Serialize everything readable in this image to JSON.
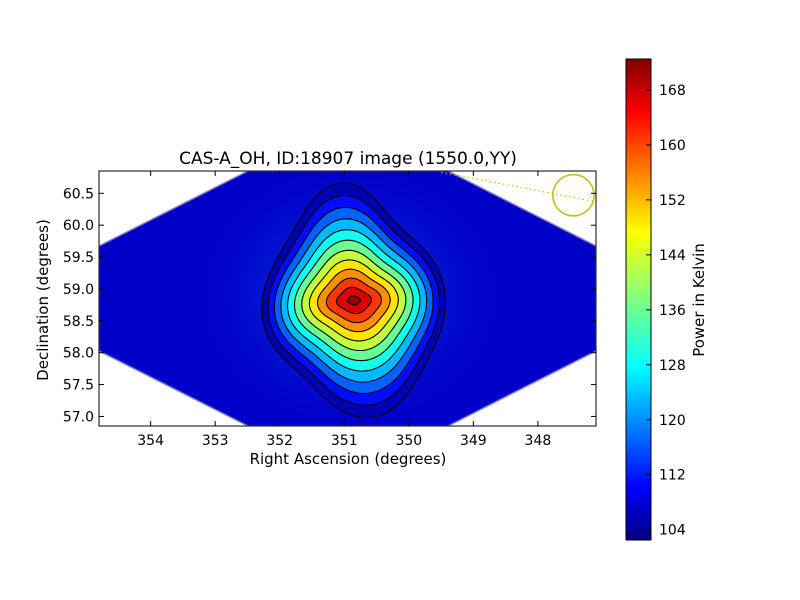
{
  "chart_data": {
    "type": "heatmap",
    "title": "CAS-A_OH, ID:18907 image (1550.0,YY)",
    "xlabel": "Right Ascension (degrees)",
    "ylabel": "Declination (degrees)",
    "x_ticks": [
      "354",
      "353",
      "352",
      "351",
      "350",
      "349",
      "348"
    ],
    "y_ticks": [
      "57.0",
      "57.5",
      "58.0",
      "58.5",
      "59.0",
      "59.5",
      "60.0",
      "60.5"
    ],
    "xlim": [
      354.8,
      347.1
    ],
    "ylim": [
      56.85,
      60.85
    ],
    "colorbar": {
      "label": "Power in Kelvin",
      "ticks": [
        "104",
        "112",
        "120",
        "128",
        "136",
        "144",
        "152",
        "160",
        "168"
      ],
      "range": [
        102.5,
        172.5
      ],
      "colormap": "jet"
    },
    "peak": {
      "ra": 350.85,
      "dec": 58.82,
      "value": 172
    },
    "background_level": 105,
    "contour_levels": [
      106,
      112,
      118,
      124,
      130,
      136,
      142,
      148,
      154,
      160,
      166,
      171
    ],
    "beam_marker": {
      "ra": 347.45,
      "dec": 60.47,
      "radius_deg": 0.32,
      "color": "#bfbf00"
    },
    "grid": false,
    "legend": "none"
  }
}
